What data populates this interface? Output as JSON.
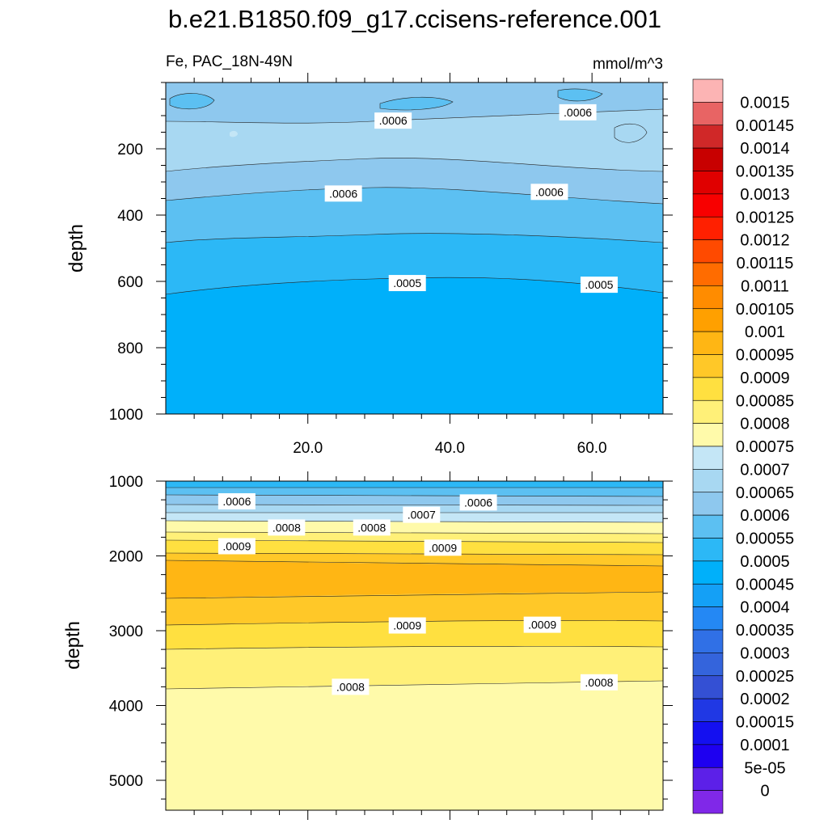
{
  "chart_data": {
    "type": "heatmap",
    "title": "b.e21.B1850.f09_g17.ccisens-reference.001",
    "variable_label": "Fe, PAC_18N-49N",
    "units": "mmol/m^3",
    "colorbar": {
      "levels": [
        "0.0015",
        "0.00145",
        "0.0014",
        "0.00135",
        "0.0013",
        "0.00125",
        "0.0012",
        "0.00115",
        "0.0011",
        "0.00105",
        "0.001",
        "0.00095",
        "0.0009",
        "0.00085",
        "0.0008",
        "0.00075",
        "0.0007",
        "0.00065",
        "0.0006",
        "0.00055",
        "0.0005",
        "0.00045",
        "0.0004",
        "0.00035",
        "0.0003",
        "0.00025",
        "0.0002",
        "0.00015",
        "0.0001",
        "5e-05",
        "0"
      ],
      "colors": [
        "#fcb4b4",
        "#e86464",
        "#d02828",
        "#c80000",
        "#e00000",
        "#f80000",
        "#ff2000",
        "#ff4a00",
        "#ff6c00",
        "#ff8c00",
        "#ffa000",
        "#ffb614",
        "#ffc828",
        "#ffe040",
        "#fff078",
        "#fffaaa",
        "#c4e6f6",
        "#a8d8f2",
        "#8ec8ee",
        "#5cc0f2",
        "#2cb8f6",
        "#00b0fa",
        "#14a0f6",
        "#2488f4",
        "#3070e6",
        "#3464dc",
        "#3450d4",
        "#2038e4",
        "#1410f0",
        "#1e00f0",
        "#5c20e8",
        "#8028e8"
      ]
    },
    "panels": [
      {
        "name": "upper",
        "xlim": [
          0,
          70
        ],
        "ylim": [
          0,
          1000
        ],
        "y_inverted": true,
        "x_ticks": [
          "20.0",
          "40.0",
          "60.0"
        ],
        "x_tick_values": [
          20,
          40,
          60
        ],
        "y_ticks": [
          "200",
          "400",
          "600",
          "800",
          "1000"
        ],
        "y_tick_values": [
          200,
          400,
          600,
          800,
          1000
        ],
        "ylabel": "depth",
        "contour_labels": [
          {
            "text": ".0006",
            "x": 58,
            "y": 90
          },
          {
            "text": ".0006",
            "x": 32,
            "y": 115
          },
          {
            "text": ".0006",
            "x": 25,
            "y": 335
          },
          {
            "text": ".0006",
            "x": 54,
            "y": 330
          },
          {
            "text": ".0005",
            "x": 34,
            "y": 605
          },
          {
            "text": ".0005",
            "x": 61,
            "y": 610
          }
        ]
      },
      {
        "name": "lower",
        "xlim": [
          0,
          70
        ],
        "ylim": [
          1000,
          5400
        ],
        "y_inverted": true,
        "x_ticks": [],
        "x_tick_values": [
          20,
          40,
          60
        ],
        "y_ticks": [
          "1000",
          "2000",
          "3000",
          "4000",
          "5000"
        ],
        "y_tick_values": [
          1000,
          2000,
          3000,
          4000,
          5000
        ],
        "ylabel": "depth",
        "contour_labels": [
          {
            "text": ".0006",
            "x": 10,
            "y": 1270
          },
          {
            "text": ".0006",
            "x": 44,
            "y": 1285
          },
          {
            "text": ".0007",
            "x": 36,
            "y": 1450
          },
          {
            "text": ".0008",
            "x": 17,
            "y": 1620
          },
          {
            "text": ".0008",
            "x": 29,
            "y": 1620
          },
          {
            "text": ".0009",
            "x": 10,
            "y": 1870
          },
          {
            "text": ".0009",
            "x": 39,
            "y": 1890
          },
          {
            "text": ".0009",
            "x": 34,
            "y": 2930
          },
          {
            "text": ".0009",
            "x": 53,
            "y": 2920
          },
          {
            "text": ".0008",
            "x": 26,
            "y": 3750
          },
          {
            "text": ".0008",
            "x": 61,
            "y": 3690
          }
        ]
      }
    ]
  }
}
